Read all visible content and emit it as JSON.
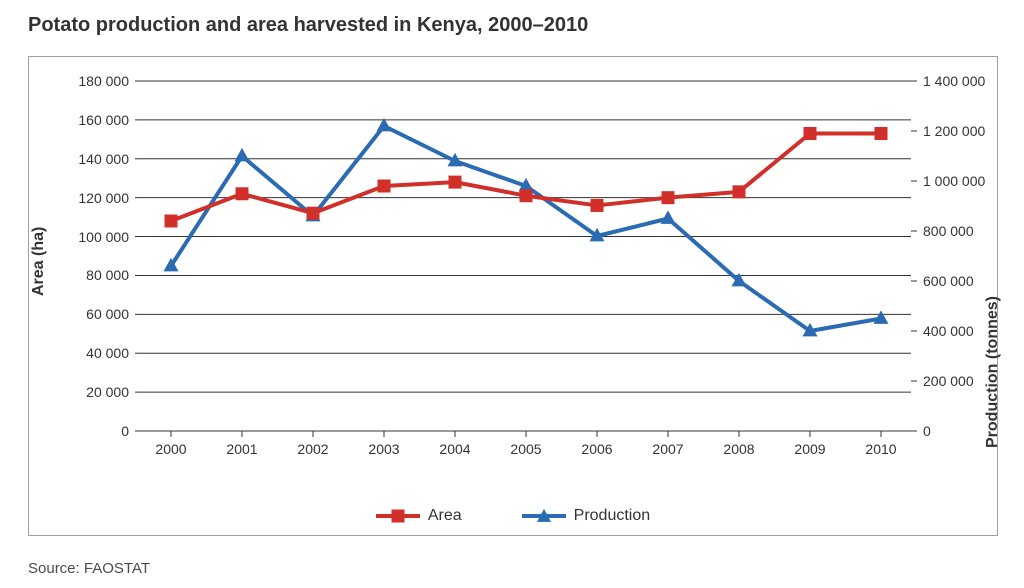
{
  "title": "Potato production and area harvested in Kenya, 2000–2010",
  "source": "Source: FAOSTAT",
  "chart": {
    "type": "line-dual-axis",
    "background_color": "#ffffff",
    "outer_border_color": "#9aa0a6",
    "grid_color": "#333333",
    "text_color": "#333333",
    "tick_fontsize": 14,
    "axis_label_fontsize": 16,
    "title_fontsize": 20,
    "x": {
      "categories": [
        "2000",
        "2001",
        "2002",
        "2003",
        "2004",
        "2005",
        "2006",
        "2007",
        "2008",
        "2009",
        "2010"
      ]
    },
    "y_left": {
      "label": "Area (ha)",
      "min": 0,
      "max": 180000,
      "tick_step": 20000,
      "ticks": [
        "0",
        "20 000",
        "40 000",
        "60 000",
        "80 000",
        "100 000",
        "120 000",
        "140 000",
        "160 000",
        "180 000"
      ]
    },
    "y_right": {
      "label": "Production (tonnes)",
      "min": 0,
      "max": 1400000,
      "tick_step": 200000,
      "ticks": [
        "0",
        "200 000",
        "400 000",
        "600 000",
        "800 000",
        "1 000 000",
        "1 200 000",
        "1 400 000"
      ]
    },
    "series": {
      "area": {
        "label": "Area",
        "axis": "left",
        "color": "#d12f2a",
        "line_width": 4,
        "marker": "square",
        "marker_size": 13,
        "values": [
          108000,
          122000,
          112000,
          126000,
          128000,
          121000,
          116000,
          120000,
          123000,
          153000,
          153000
        ]
      },
      "production": {
        "label": "Production",
        "axis": "right",
        "color": "#2a6bb3",
        "line_width": 4,
        "marker": "triangle",
        "marker_size": 15,
        "values": [
          660000,
          1100000,
          860000,
          1220000,
          1080000,
          980000,
          780000,
          850000,
          600000,
          400000,
          450000
        ]
      }
    },
    "legend_position": "bottom-center"
  }
}
